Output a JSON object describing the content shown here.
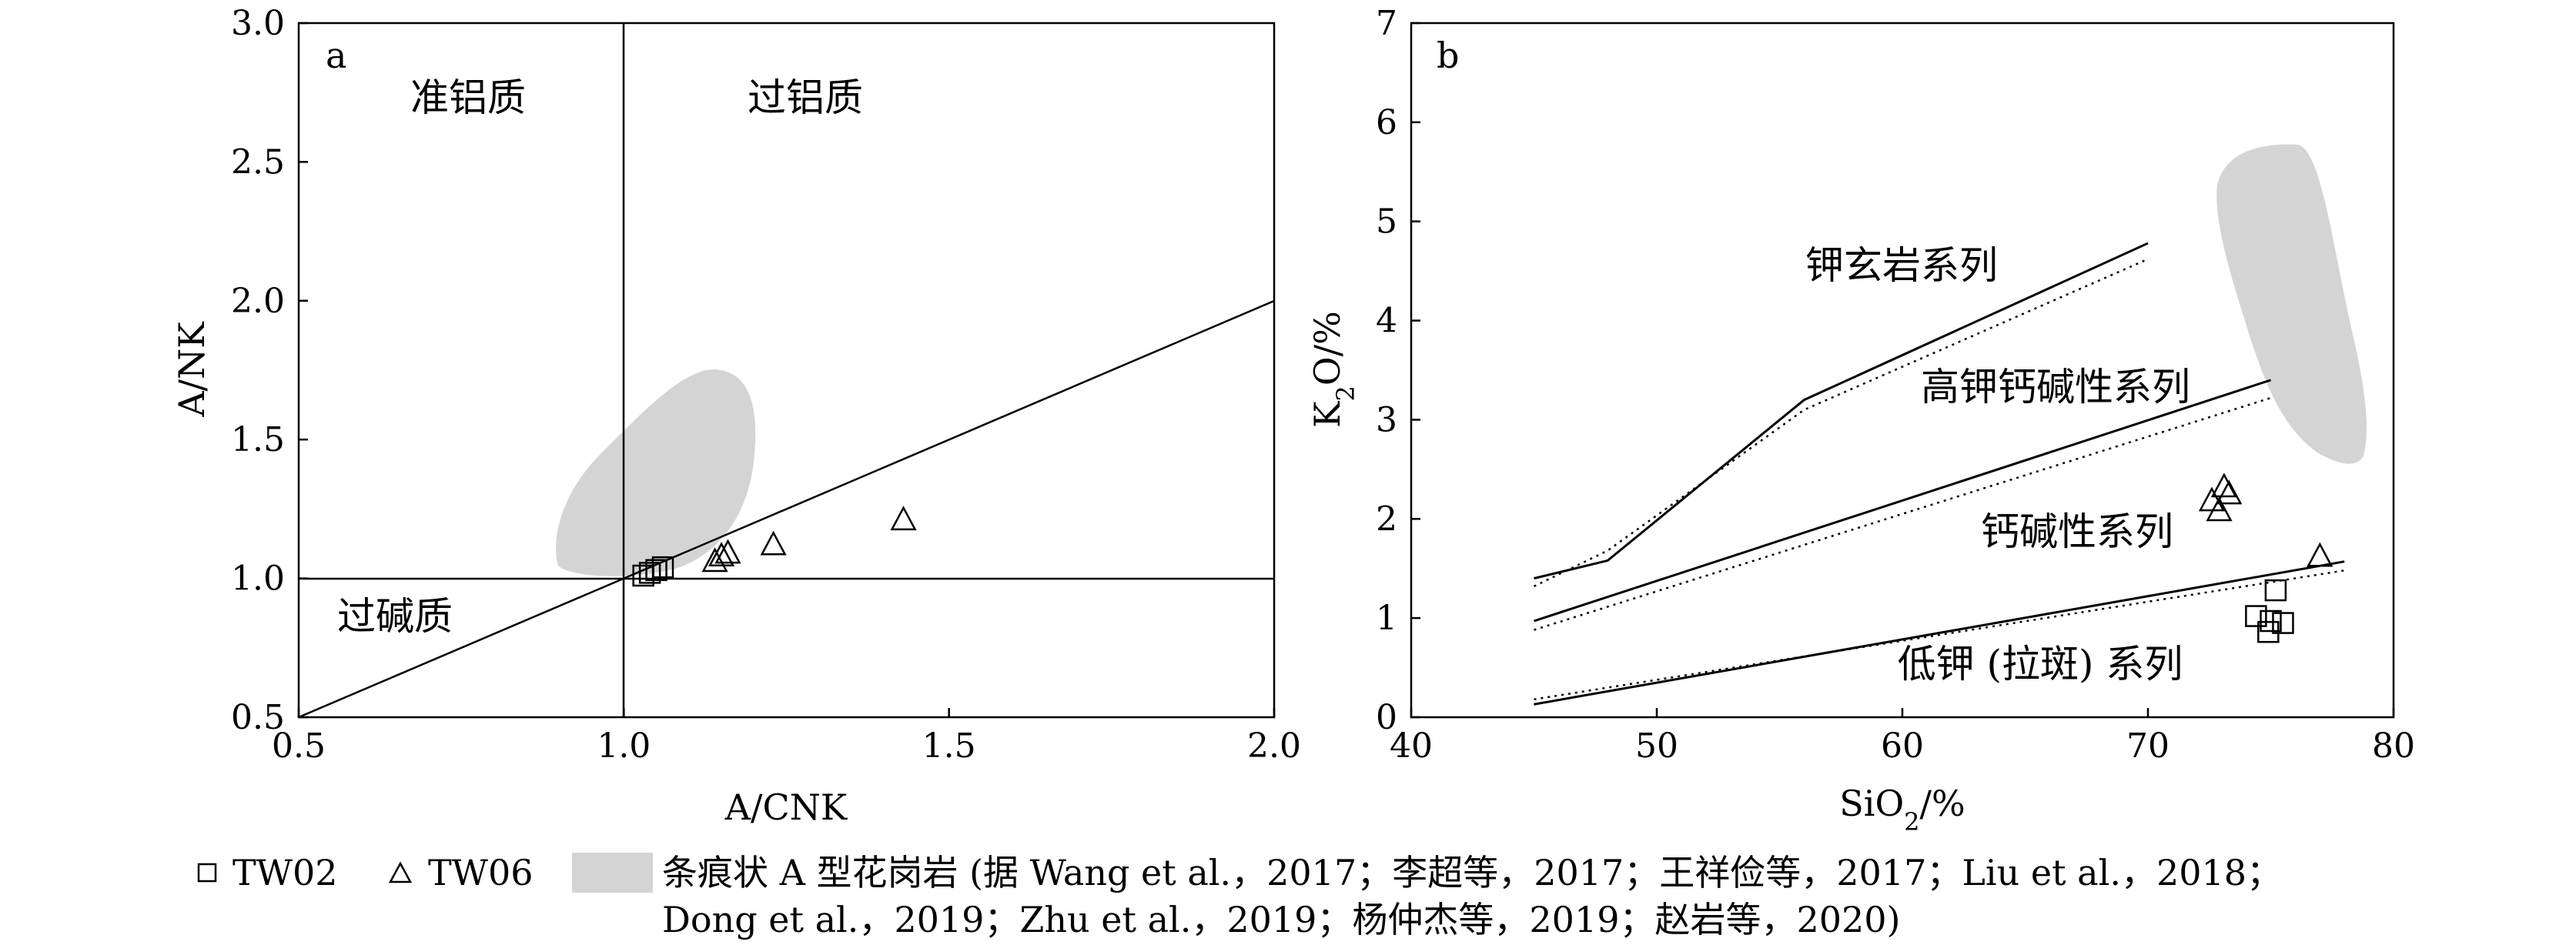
{
  "chart_data": [
    {
      "panel_label": "a",
      "type": "scatter",
      "xlabel": "A/CNK",
      "ylabel": "A/NK",
      "xlim": [
        0.5,
        2.0
      ],
      "ylim": [
        0.5,
        3.0
      ],
      "xticks": [
        "0.5",
        "1.0",
        "1.5",
        "2.0"
      ],
      "yticks": [
        "0.5",
        "1.0",
        "1.5",
        "2.0",
        "2.5",
        "3.0"
      ],
      "grid": false,
      "zone_labels": [
        "准铝质",
        "过铝质",
        "过碱质"
      ],
      "series": [
        {
          "name": "TW02",
          "marker": "square",
          "points": [
            [
              1.03,
              1.01
            ],
            [
              1.04,
              1.02
            ],
            [
              1.05,
              1.03
            ],
            [
              1.06,
              1.04
            ]
          ]
        },
        {
          "name": "TW06",
          "marker": "triangle",
          "points": [
            [
              1.14,
              1.06
            ],
            [
              1.15,
              1.08
            ],
            [
              1.16,
              1.09
            ],
            [
              1.23,
              1.12
            ],
            [
              1.43,
              1.21
            ]
          ]
        }
      ]
    },
    {
      "panel_label": "b",
      "type": "scatter",
      "xlabel": "SiO₂/%",
      "ylabel": "K₂O/%",
      "xlim": [
        40,
        80
      ],
      "ylim": [
        0,
        7
      ],
      "xticks": [
        "40",
        "50",
        "60",
        "70",
        "80"
      ],
      "yticks": [
        "0",
        "1",
        "2",
        "3",
        "4",
        "5",
        "6",
        "7"
      ],
      "grid": false,
      "zone_labels": [
        "钾玄岩系列",
        "高钾钙碱性系列",
        "钙碱性系列",
        "低钾 (拉斑) 系列"
      ],
      "series": [
        {
          "name": "TW02",
          "marker": "square",
          "points": [
            [
              75.2,
              1.28
            ],
            [
              74.4,
              1.02
            ],
            [
              75.0,
              0.97
            ],
            [
              75.5,
              0.95
            ],
            [
              74.9,
              0.86
            ]
          ]
        },
        {
          "name": "TW06",
          "marker": "triangle",
          "points": [
            [
              72.6,
              2.18
            ],
            [
              73.1,
              2.32
            ],
            [
              73.3,
              2.25
            ],
            [
              72.9,
              2.08
            ],
            [
              77.0,
              1.62
            ]
          ]
        }
      ]
    }
  ],
  "legend": {
    "tw02": "TW02",
    "tw06": "TW06",
    "field_line1": "条痕状 A 型花岗岩 (据 Wang et al.，2017；李超等，2017；王祥俭等，2017；Liu et al.，2018；",
    "field_line2": "Dong et al.，2019；Zhu et al.，2019；杨仲杰等，2019；赵岩等，2020)"
  }
}
